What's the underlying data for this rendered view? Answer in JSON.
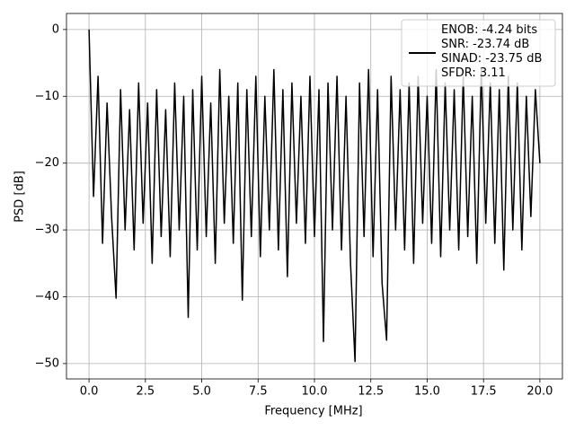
{
  "chart_data": {
    "type": "line",
    "xlabel": "Frequency [MHz]",
    "ylabel": "PSD [dB]",
    "x": [
      0,
      0.2,
      0.4,
      0.6,
      0.8,
      1.0,
      1.2,
      1.4,
      1.6,
      1.8,
      2.0,
      2.2,
      2.4,
      2.6,
      2.8,
      3.0,
      3.2,
      3.4,
      3.6,
      3.8,
      4.0,
      4.2,
      4.4,
      4.6,
      4.8,
      5.0,
      5.2,
      5.4,
      5.6,
      5.8,
      6.0,
      6.2,
      6.4,
      6.6,
      6.8,
      7.0,
      7.2,
      7.4,
      7.6,
      7.8,
      8.0,
      8.2,
      8.4,
      8.6,
      8.8,
      9.0,
      9.2,
      9.4,
      9.6,
      9.8,
      10.0,
      10.2,
      10.4,
      10.6,
      10.8,
      11.0,
      11.2,
      11.4,
      11.6,
      11.8,
      12.0,
      12.2,
      12.4,
      12.6,
      12.8,
      13.0,
      13.2,
      13.4,
      13.6,
      13.8,
      14.0,
      14.2,
      14.4,
      14.6,
      14.8,
      15.0,
      15.2,
      15.4,
      15.6,
      15.8,
      16.0,
      16.2,
      16.4,
      16.6,
      16.8,
      17.0,
      17.2,
      17.4,
      17.6,
      17.8,
      18.0,
      18.2,
      18.4,
      18.6,
      18.8,
      19.0,
      19.2,
      19.4,
      19.6,
      19.8,
      20.0
    ],
    "series": [
      {
        "name": "ENOB: -4.24 bits\nSNR: -23.74 dB\nSINAD: -23.75 dB\nSFDR: 3.11",
        "color": "#000000",
        "values": [
          0,
          -25,
          -7,
          -32,
          -11,
          -28,
          -40.2,
          -9,
          -30,
          -12,
          -33,
          -8,
          -29,
          -11,
          -35,
          -9,
          -31,
          -12,
          -34,
          -8,
          -30,
          -10,
          -43.1,
          -9,
          -33,
          -7,
          -31,
          -11,
          -35,
          -6,
          -29,
          -10,
          -32,
          -8,
          -40.5,
          -9,
          -31,
          -7,
          -34,
          -10,
          -30,
          -6,
          -33,
          -9,
          -37,
          -8,
          -29,
          -10,
          -32,
          -7,
          -31,
          -9,
          -46.7,
          -8,
          -30,
          -7,
          -33,
          -10,
          -35,
          -49.7,
          -8,
          -31,
          -6,
          -34,
          -9,
          -38,
          -46.5,
          -7,
          -30,
          -9,
          -33,
          -8,
          -35,
          -7,
          -29,
          -10,
          -32,
          -6,
          -34,
          -8,
          -30,
          -9,
          -33,
          -7,
          -31,
          -10,
          -35,
          -6,
          -29,
          -8,
          -32,
          -9,
          -36,
          -7,
          -30,
          -8,
          -33,
          -10,
          -28,
          -9,
          -20
        ]
      }
    ],
    "xlim": [
      -1.0,
      21.0
    ],
    "xticks": [
      {
        "value": 0,
        "label": "0.0"
      },
      {
        "value": 2.5,
        "label": "2.5"
      },
      {
        "value": 5,
        "label": "5.0"
      },
      {
        "value": 7.5,
        "label": "7.5"
      },
      {
        "value": 10,
        "label": "10.0"
      },
      {
        "value": 12.5,
        "label": "12.5"
      },
      {
        "value": 15,
        "label": "15.0"
      },
      {
        "value": 17.5,
        "label": "17.5"
      },
      {
        "value": 20,
        "label": "20.0"
      }
    ],
    "ylim": [
      -52.3,
      2.4
    ],
    "yticks": [
      {
        "value": -50,
        "label": "−50"
      },
      {
        "value": -40,
        "label": "−40"
      },
      {
        "value": -30,
        "label": "−30"
      },
      {
        "value": -20,
        "label": "−20"
      },
      {
        "value": -10,
        "label": "−10"
      },
      0
    ],
    "grid": true,
    "legend": "upper right"
  }
}
